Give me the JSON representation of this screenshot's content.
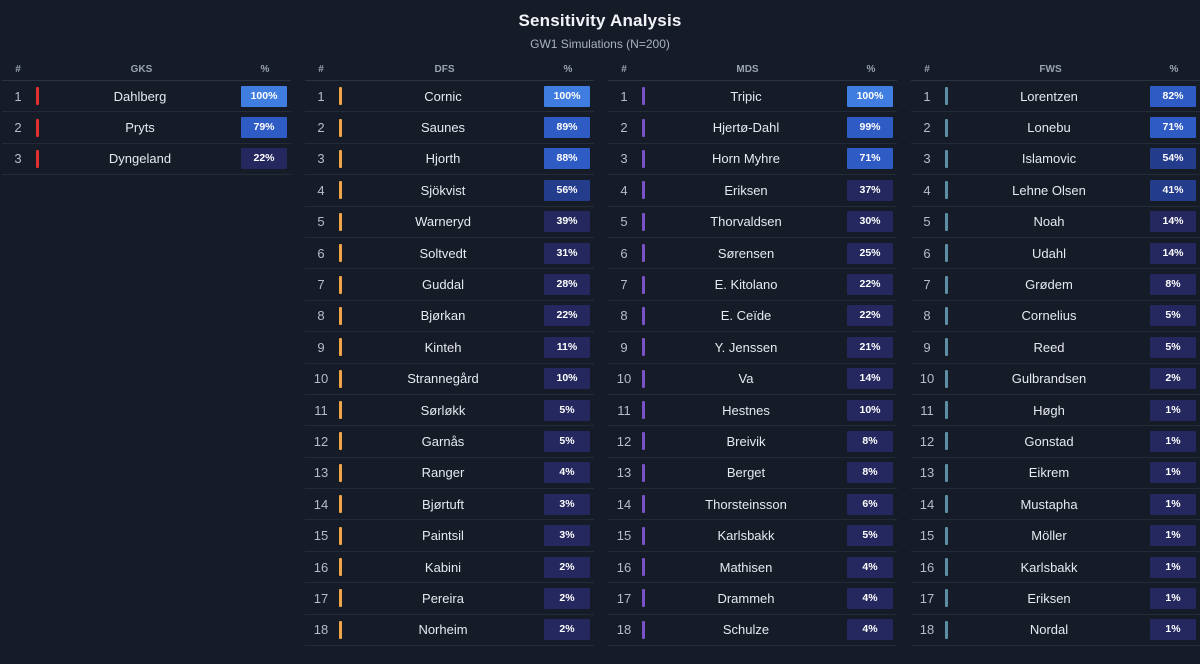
{
  "header": {
    "title": "Sensitivity Analysis",
    "subtitle": "GW1 Simulations (N=200)"
  },
  "columns": [
    {
      "key": "gks",
      "num_header": "#",
      "name_header": "GKS",
      "pct_header": "%",
      "accent": "#e0302f",
      "rows": [
        {
          "rank": "1",
          "name": "Dahlberg",
          "pct": "100%",
          "value": 100
        },
        {
          "rank": "2",
          "name": "Pryts",
          "pct": "79%",
          "value": 79
        },
        {
          "rank": "3",
          "name": "Dyngeland",
          "pct": "22%",
          "value": 22
        }
      ]
    },
    {
      "key": "dfs",
      "num_header": "#",
      "name_header": "DFS",
      "pct_header": "%",
      "accent": "#f0a44a",
      "rows": [
        {
          "rank": "1",
          "name": "Cornic",
          "pct": "100%",
          "value": 100
        },
        {
          "rank": "2",
          "name": "Saunes",
          "pct": "89%",
          "value": 89
        },
        {
          "rank": "3",
          "name": "Hjorth",
          "pct": "88%",
          "value": 88
        },
        {
          "rank": "4",
          "name": "Sjökvist",
          "pct": "56%",
          "value": 56
        },
        {
          "rank": "5",
          "name": "Warneryd",
          "pct": "39%",
          "value": 39
        },
        {
          "rank": "6",
          "name": "Soltvedt",
          "pct": "31%",
          "value": 31
        },
        {
          "rank": "7",
          "name": "Guddal",
          "pct": "28%",
          "value": 28
        },
        {
          "rank": "8",
          "name": "Bjørkan",
          "pct": "22%",
          "value": 22
        },
        {
          "rank": "9",
          "name": "Kinteh",
          "pct": "11%",
          "value": 11
        },
        {
          "rank": "10",
          "name": "Strannegård",
          "pct": "10%",
          "value": 10
        },
        {
          "rank": "11",
          "name": "Sørløkk",
          "pct": "5%",
          "value": 5
        },
        {
          "rank": "12",
          "name": "Garnås",
          "pct": "5%",
          "value": 5
        },
        {
          "rank": "13",
          "name": "Ranger",
          "pct": "4%",
          "value": 4
        },
        {
          "rank": "14",
          "name": "Bjørtuft",
          "pct": "3%",
          "value": 3
        },
        {
          "rank": "15",
          "name": "Paintsil",
          "pct": "3%",
          "value": 3
        },
        {
          "rank": "16",
          "name": "Kabini",
          "pct": "2%",
          "value": 2
        },
        {
          "rank": "17",
          "name": "Pereira",
          "pct": "2%",
          "value": 2
        },
        {
          "rank": "18",
          "name": "Norheim",
          "pct": "2%",
          "value": 2
        }
      ]
    },
    {
      "key": "mds",
      "num_header": "#",
      "name_header": "MDS",
      "pct_header": "%",
      "accent": "#7a52c8",
      "rows": [
        {
          "rank": "1",
          "name": "Tripic",
          "pct": "100%",
          "value": 100
        },
        {
          "rank": "2",
          "name": "Hjertø-Dahl",
          "pct": "99%",
          "value": 99
        },
        {
          "rank": "3",
          "name": "Horn Myhre",
          "pct": "71%",
          "value": 71
        },
        {
          "rank": "4",
          "name": "Eriksen",
          "pct": "37%",
          "value": 37
        },
        {
          "rank": "5",
          "name": "Thorvaldsen",
          "pct": "30%",
          "value": 30
        },
        {
          "rank": "6",
          "name": "Sørensen",
          "pct": "25%",
          "value": 25
        },
        {
          "rank": "7",
          "name": "E. Kitolano",
          "pct": "22%",
          "value": 22
        },
        {
          "rank": "8",
          "name": "E. Ceïde",
          "pct": "22%",
          "value": 22
        },
        {
          "rank": "9",
          "name": "Y. Jenssen",
          "pct": "21%",
          "value": 21
        },
        {
          "rank": "10",
          "name": "Va",
          "pct": "14%",
          "value": 14
        },
        {
          "rank": "11",
          "name": "Hestnes",
          "pct": "10%",
          "value": 10
        },
        {
          "rank": "12",
          "name": "Breivik",
          "pct": "8%",
          "value": 8
        },
        {
          "rank": "13",
          "name": "Berget",
          "pct": "8%",
          "value": 8
        },
        {
          "rank": "14",
          "name": "Thorsteinsson",
          "pct": "6%",
          "value": 6
        },
        {
          "rank": "15",
          "name": "Karlsbakk",
          "pct": "5%",
          "value": 5
        },
        {
          "rank": "16",
          "name": "Mathisen",
          "pct": "4%",
          "value": 4
        },
        {
          "rank": "17",
          "name": "Drammeh",
          "pct": "4%",
          "value": 4
        },
        {
          "rank": "18",
          "name": "Schulze",
          "pct": "4%",
          "value": 4
        }
      ]
    },
    {
      "key": "fws",
      "num_header": "#",
      "name_header": "FWS",
      "pct_header": "%",
      "accent": "#5e8ea6",
      "rows": [
        {
          "rank": "1",
          "name": "Lorentzen",
          "pct": "82%",
          "value": 82
        },
        {
          "rank": "2",
          "name": "Lonebu",
          "pct": "71%",
          "value": 71
        },
        {
          "rank": "3",
          "name": "Islamovic",
          "pct": "54%",
          "value": 54
        },
        {
          "rank": "4",
          "name": "Lehne Olsen",
          "pct": "41%",
          "value": 41
        },
        {
          "rank": "5",
          "name": "Noah",
          "pct": "14%",
          "value": 14
        },
        {
          "rank": "6",
          "name": "Udahl",
          "pct": "14%",
          "value": 14
        },
        {
          "rank": "7",
          "name": "Grødem",
          "pct": "8%",
          "value": 8
        },
        {
          "rank": "8",
          "name": "Cornelius",
          "pct": "5%",
          "value": 5
        },
        {
          "rank": "9",
          "name": "Reed",
          "pct": "5%",
          "value": 5
        },
        {
          "rank": "10",
          "name": "Gulbrandsen",
          "pct": "2%",
          "value": 2
        },
        {
          "rank": "11",
          "name": "Høgh",
          "pct": "1%",
          "value": 1
        },
        {
          "rank": "12",
          "name": "Gonstad",
          "pct": "1%",
          "value": 1
        },
        {
          "rank": "13",
          "name": "Eikrem",
          "pct": "1%",
          "value": 1
        },
        {
          "rank": "14",
          "name": "Mustapha",
          "pct": "1%",
          "value": 1
        },
        {
          "rank": "15",
          "name": "Möller",
          "pct": "1%",
          "value": 1
        },
        {
          "rank": "16",
          "name": "Karlsbakk",
          "pct": "1%",
          "value": 1
        },
        {
          "rank": "17",
          "name": "Eriksen",
          "pct": "1%",
          "value": 1
        },
        {
          "rank": "18",
          "name": "Nordal",
          "pct": "1%",
          "value": 1
        }
      ]
    }
  ],
  "colors": {
    "badge_high": "#3f7ee0",
    "badge_mid": "#2f5cc4",
    "badge_low": "#233c8c",
    "badge_min": "#24285e"
  }
}
